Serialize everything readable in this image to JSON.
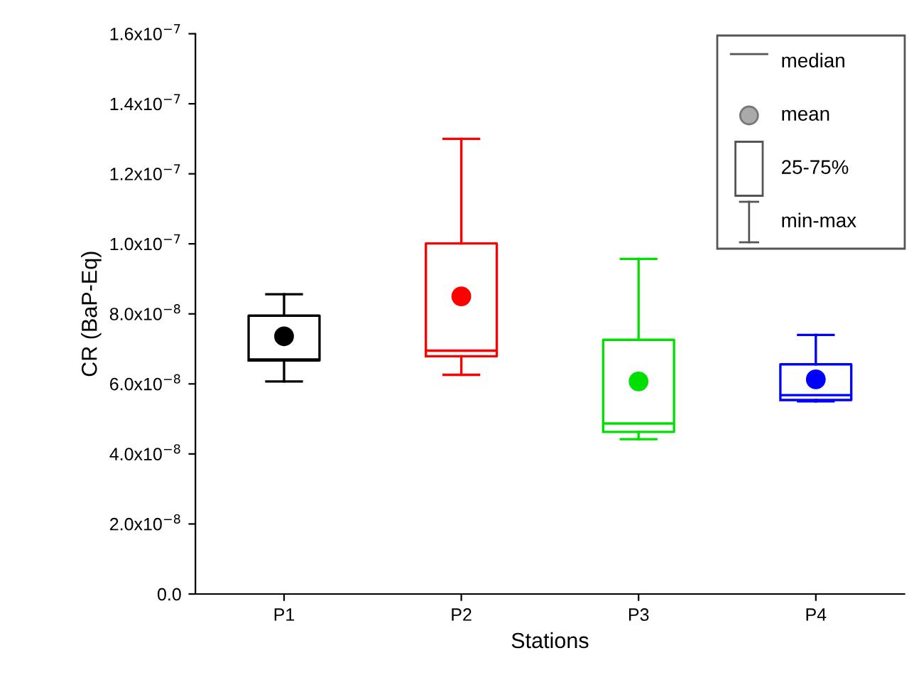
{
  "chart_data": {
    "type": "box",
    "xlabel": "Stations",
    "ylabel": "CR (BaP-Eq)",
    "categories": [
      "P1",
      "P2",
      "P3",
      "P4"
    ],
    "colors": [
      "#000000",
      "#ff0000",
      "#00e000",
      "#0000ff"
    ],
    "boxes": [
      {
        "low": 6.07e-08,
        "q1": 6.67e-08,
        "median": 6.7e-08,
        "q3": 7.95e-08,
        "high": 8.56e-08,
        "mean": 7.36e-08
      },
      {
        "low": 6.26e-08,
        "q1": 6.79e-08,
        "median": 6.95e-08,
        "q3": 1.001e-07,
        "high": 1.3e-07,
        "mean": 8.5e-08
      },
      {
        "low": 4.42e-08,
        "q1": 4.63e-08,
        "median": 4.87e-08,
        "q3": 7.26e-08,
        "high": 9.57e-08,
        "mean": 6.07e-08
      },
      {
        "low": 5.5e-08,
        "q1": 5.54e-08,
        "median": 5.68e-08,
        "q3": 6.56e-08,
        "high": 7.4e-08,
        "mean": 6.13e-08
      }
    ],
    "ylim": [
      0,
      1.6e-07
    ],
    "yticks": [
      {
        "value": 0,
        "label": "0.0"
      },
      {
        "value": 2e-08,
        "label": "2.0x10$^{−8}$"
      },
      {
        "value": 4e-08,
        "label": "4.0x10$^{−8}$"
      },
      {
        "value": 6e-08,
        "label": "6.0x10$^{−8}$"
      },
      {
        "value": 8e-08,
        "label": "8.0x10$^{−8}$"
      },
      {
        "value": 1e-07,
        "label": "1.0x10$^{−7}$"
      },
      {
        "value": 1.2e-07,
        "label": "1.2x10$^{−7}$"
      },
      {
        "value": 1.4e-07,
        "label": "1.4x10$^{−7}$"
      },
      {
        "value": 1.6e-07,
        "label": "1.6x10$^{−7}$"
      }
    ],
    "annotations": [
      "median",
      "mean",
      "25-75%",
      "min-max"
    ],
    "marker": "circle",
    "grid": false
  }
}
